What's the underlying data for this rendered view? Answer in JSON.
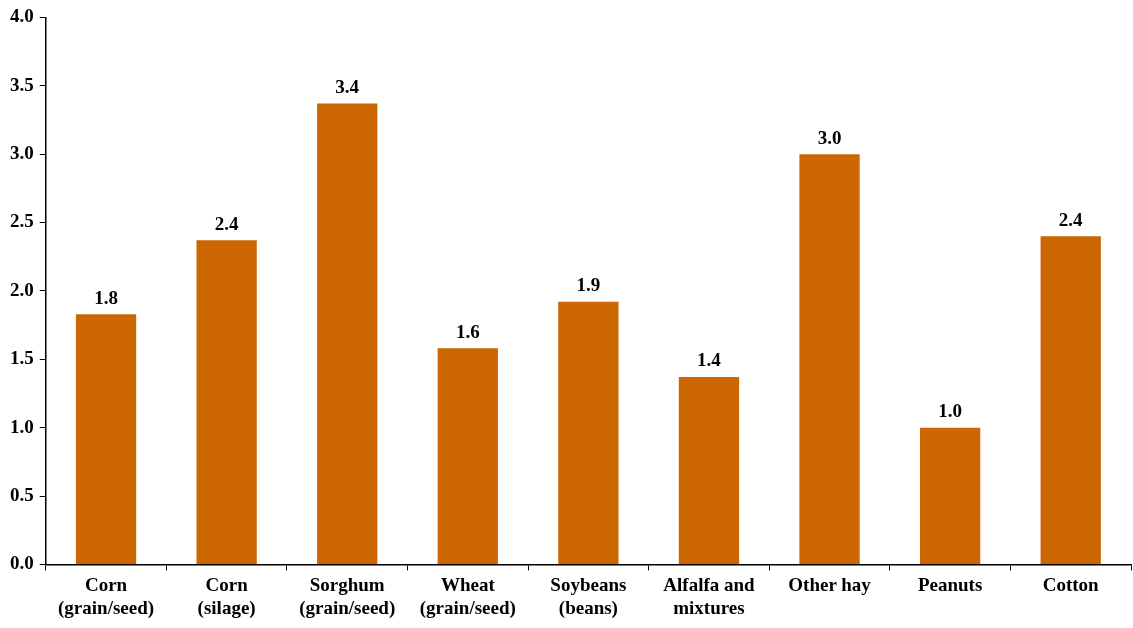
{
  "chart_data": {
    "type": "bar",
    "categories": [
      "Corn\n(grain/seed)",
      "Corn\n(silage)",
      "Sorghum\n(grain/seed)",
      "Wheat\n(grain/seed)",
      "Soybeans\n(beans)",
      "Alfalfa and\nmixtures",
      "Other hay",
      "Peanuts",
      "Cotton"
    ],
    "values": [
      1.83,
      2.37,
      3.37,
      1.58,
      1.92,
      1.37,
      3.0,
      1.0,
      2.4
    ],
    "value_labels": [
      "1.8",
      "2.4",
      "3.4",
      "1.6",
      "1.9",
      "1.4",
      "3.0",
      "1.0",
      "2.4"
    ],
    "color": "#cc6600",
    "ylim": [
      0,
      4
    ],
    "yticks": [
      {
        "value": 0,
        "label": "0.0"
      },
      {
        "value": 0.5,
        "label": "0.5"
      },
      {
        "value": 1,
        "label": "1.0"
      },
      {
        "value": 1.5,
        "label": "1.5"
      },
      {
        "value": 2,
        "label": "2.0"
      },
      {
        "value": 2.5,
        "label": "2.5"
      },
      {
        "value": 3,
        "label": "3.0"
      },
      {
        "value": 3.5,
        "label": "3.5"
      },
      {
        "value": 4,
        "label": "4.0"
      }
    ],
    "grid": false,
    "legend": false
  }
}
